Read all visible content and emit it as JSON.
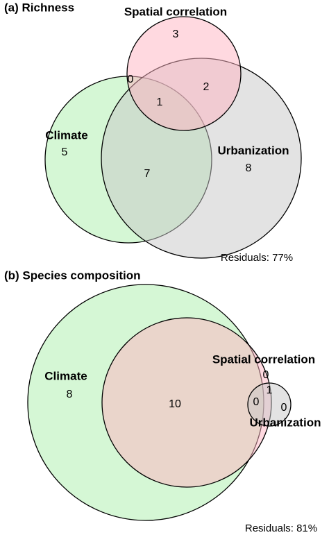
{
  "panels": [
    {
      "title": "(a) Richness",
      "sets": [
        "Spatial correlation",
        "Climate",
        "Urbanization"
      ],
      "regions": [
        "3",
        "0",
        "2",
        "1",
        "5",
        "8",
        "7"
      ],
      "residuals": "Residuals: 77%"
    },
    {
      "title": "(b) Species composition",
      "sets": [
        "Spatial correlation",
        "Climate",
        "Urbanization"
      ],
      "regions": [
        "0",
        "1",
        "0",
        "0",
        "8",
        "10"
      ],
      "residuals": "Residuals: 81%"
    }
  ]
}
